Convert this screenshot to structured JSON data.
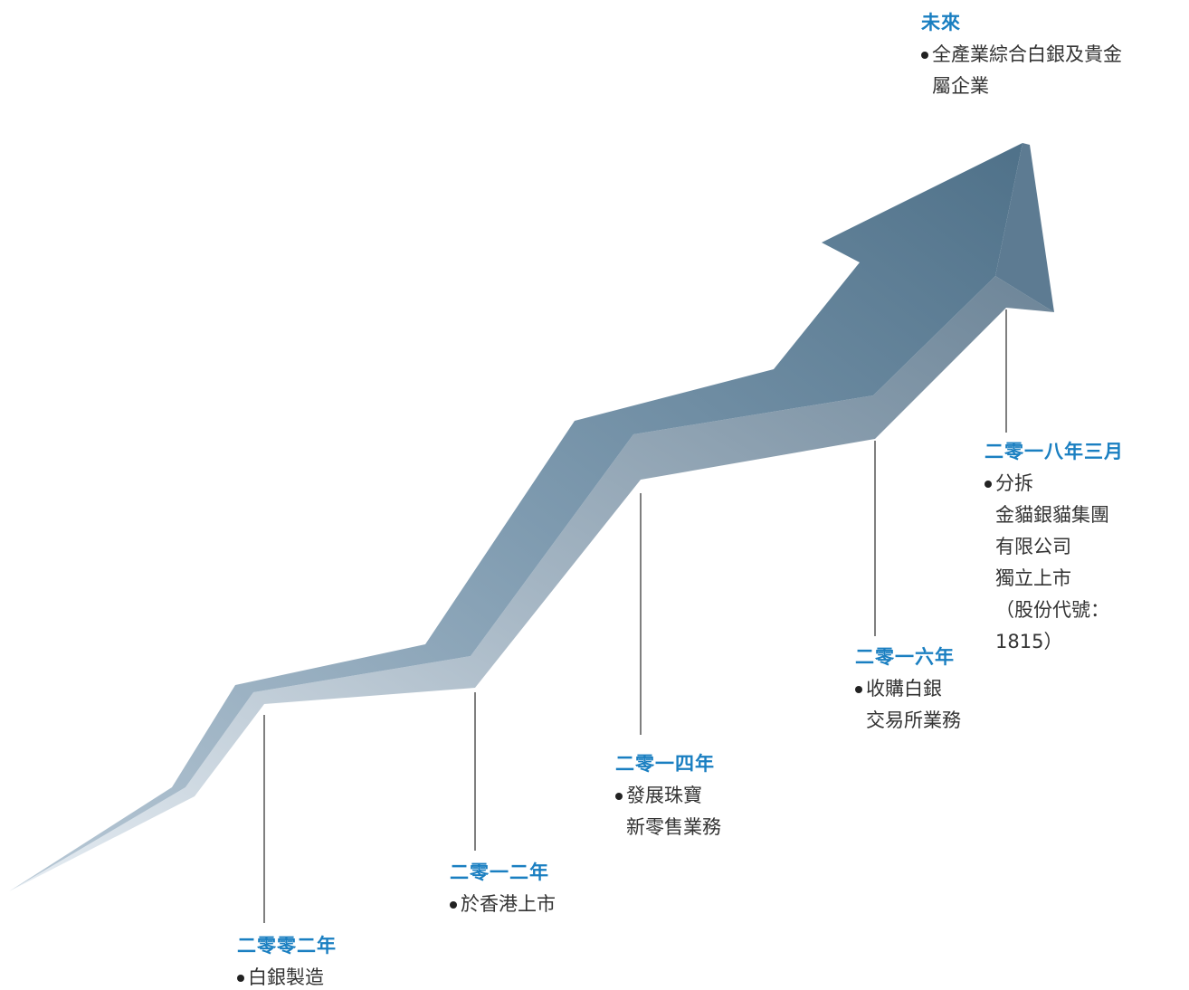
{
  "milestones": [
    {
      "title": "二零零二年",
      "lines": [
        "白銀製造"
      ]
    },
    {
      "title": "二零一二年",
      "lines": [
        "於香港上市"
      ]
    },
    {
      "title": "二零一四年",
      "lines": [
        "發展珠寶",
        "新零售業務"
      ]
    },
    {
      "title": "二零一六年",
      "lines": [
        "收購白銀",
        "交易所業務"
      ]
    },
    {
      "title": "二零一八年三月",
      "lines": [
        "分拆",
        "金貓銀貓集團",
        "有限公司",
        "獨立上市",
        "（股份代號：",
        "1815）"
      ]
    },
    {
      "title": "未來",
      "lines": [
        "全產業綜合白銀及貴金",
        "屬企業"
      ]
    }
  ]
}
